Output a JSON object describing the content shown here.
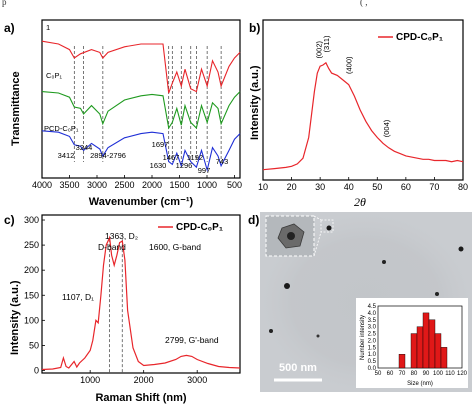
{
  "top_strip": {
    "left_text": "p",
    "right_text": "(                 ,"
  },
  "panels": {
    "a": {
      "letter": "a)",
      "ylabel": "Transmittance",
      "xlabel": "Wavenumber (cm⁻¹)",
      "xticks": [
        "4000",
        "3500",
        "3000",
        "2500",
        "2000",
        "1500",
        "1000",
        "500"
      ],
      "trace_labels": [
        "1",
        "C₀P₁",
        "PCD-C₀P₁"
      ],
      "peak_labels": [
        "3412",
        "3244",
        "2894-2796",
        "1697",
        "1630",
        "1467",
        "1296",
        "1192",
        "997",
        "743"
      ]
    },
    "b": {
      "letter": "b)",
      "ylabel": "Intensity (a.u.)",
      "xlabel": "2θ",
      "legend": "CPD-C₀P₁",
      "xticks": [
        "10",
        "20",
        "30",
        "40",
        "50",
        "60",
        "70",
        "80"
      ],
      "hkl": [
        "(002)",
        "(311)",
        "(400)",
        "(004)"
      ]
    },
    "c": {
      "letter": "c)",
      "ylabel": "Intensity (a.u.)",
      "xlabel": "Raman Shift (nm)",
      "legend": "CPD-C₀P₁",
      "xticks": [
        "1000",
        "2000",
        "3000"
      ],
      "yticks": [
        "0",
        "50",
        "100",
        "150",
        "200",
        "250",
        "300"
      ],
      "annotations": [
        "1363, D₂",
        "D-band",
        "1600, G-band",
        "1107, D₁",
        "2799, G'-band"
      ]
    },
    "d": {
      "letter": "d)",
      "scale_bar": "500 nm",
      "hist_ylabel": "Number intensity",
      "hist_xlabel": "Size (nm)",
      "hist_xticks": [
        "50",
        "60",
        "70",
        "80",
        "90",
        "100",
        "110",
        "120"
      ],
      "hist_yticks": [
        "0.0",
        "0.5",
        "1.0",
        "1.5",
        "2.0",
        "2.5",
        "3.0",
        "3.5",
        "4.0",
        "4.5"
      ]
    }
  },
  "colors": {
    "red": "#e8262b",
    "green": "#1f9a1f",
    "blue": "#1f2fd6",
    "tem_bg": "#c9ccd0"
  },
  "chart_data": [
    {
      "type": "line",
      "panel": "a",
      "xlabel": "Wavenumber (cm⁻¹)",
      "ylabel": "Transmittance",
      "xlim": [
        4000,
        400
      ],
      "series": [
        {
          "name": "1",
          "color": "#e8262b",
          "x": [
            4000,
            3700,
            3500,
            3412,
            3300,
            3100,
            2950,
            2894,
            2800,
            2500,
            2200,
            2000,
            1800,
            1697,
            1630,
            1550,
            1467,
            1400,
            1296,
            1192,
            1100,
            997,
            900,
            800,
            743,
            600,
            500,
            400
          ],
          "y": [
            0.92,
            0.9,
            0.86,
            0.8,
            0.83,
            0.86,
            0.84,
            0.8,
            0.84,
            0.88,
            0.9,
            0.9,
            0.9,
            0.55,
            0.62,
            0.7,
            0.6,
            0.72,
            0.58,
            0.56,
            0.72,
            0.6,
            0.78,
            0.7,
            0.6,
            0.74,
            0.8,
            0.84
          ]
        },
        {
          "name": "C₀P₁",
          "color": "#1f9a1f",
          "x": [
            4000,
            3700,
            3500,
            3412,
            3300,
            3244,
            3100,
            2950,
            2894,
            2800,
            2500,
            2200,
            2000,
            1800,
            1697,
            1630,
            1550,
            1467,
            1400,
            1296,
            1192,
            1100,
            997,
            900,
            800,
            743,
            600,
            500,
            400
          ],
          "y": [
            0.56,
            0.55,
            0.52,
            0.45,
            0.44,
            0.4,
            0.46,
            0.4,
            0.33,
            0.42,
            0.5,
            0.53,
            0.54,
            0.53,
            0.3,
            0.34,
            0.44,
            0.32,
            0.46,
            0.34,
            0.3,
            0.46,
            0.34,
            0.48,
            0.44,
            0.33,
            0.46,
            0.52,
            0.56
          ]
        },
        {
          "name": "PCD-C₀P₁",
          "color": "#1f2fd6",
          "x": [
            4000,
            3700,
            3500,
            3412,
            3300,
            3244,
            3100,
            2950,
            2894,
            2800,
            2500,
            2200,
            2000,
            1800,
            1697,
            1630,
            1550,
            1467,
            1400,
            1296,
            1192,
            1100,
            997,
            900,
            800,
            743,
            600,
            500,
            400
          ],
          "y": [
            0.28,
            0.27,
            0.24,
            0.18,
            0.17,
            0.14,
            0.19,
            0.15,
            0.1,
            0.16,
            0.23,
            0.26,
            0.27,
            0.26,
            0.06,
            0.04,
            0.12,
            0.03,
            0.14,
            0.06,
            0.02,
            0.14,
            0.0,
            0.16,
            0.1,
            0.03,
            0.14,
            0.22,
            0.26
          ]
        }
      ],
      "peaks": [
        3412,
        3244,
        2894,
        1697,
        1630,
        1467,
        1296,
        1192,
        997,
        743
      ]
    },
    {
      "type": "line",
      "panel": "b",
      "xlabel": "2θ",
      "ylabel": "Intensity (a.u.)",
      "xlim": [
        10,
        80
      ],
      "series": [
        {
          "name": "CPD-C₀P₁",
          "color": "#e8262b",
          "x": [
            10,
            14,
            18,
            20,
            22,
            24,
            26,
            28,
            29,
            30,
            31,
            32,
            33,
            34,
            36,
            38,
            40,
            42,
            44,
            46,
            48,
            50,
            52,
            54,
            56,
            58,
            60,
            62,
            64,
            66,
            68,
            70,
            72,
            74,
            76,
            78,
            80
          ],
          "y": [
            0.02,
            0.03,
            0.04,
            0.05,
            0.07,
            0.12,
            0.3,
            0.7,
            0.86,
            0.92,
            0.93,
            0.95,
            0.9,
            0.86,
            0.84,
            0.8,
            0.76,
            0.66,
            0.54,
            0.44,
            0.36,
            0.3,
            0.25,
            0.21,
            0.18,
            0.16,
            0.14,
            0.13,
            0.12,
            0.11,
            0.11,
            0.1,
            0.1,
            0.1,
            0.09,
            0.1,
            0.09
          ]
        }
      ]
    },
    {
      "type": "line",
      "panel": "c",
      "xlabel": "Raman Shift (nm)",
      "ylabel": "Intensity (a.u.)",
      "xlim": [
        100,
        3800
      ],
      "ylim": [
        -5,
        310
      ],
      "series": [
        {
          "name": "CPD-C₀P₁",
          "color": "#e8262b",
          "x": [
            100,
            300,
            450,
            500,
            550,
            600,
            700,
            750,
            800,
            900,
            1000,
            1050,
            1107,
            1150,
            1200,
            1250,
            1300,
            1363,
            1400,
            1450,
            1500,
            1550,
            1600,
            1650,
            1700,
            1800,
            1900,
            2000,
            2200,
            2400,
            2600,
            2700,
            2799,
            2900,
            3000,
            3200,
            3400,
            3600,
            3800
          ],
          "y": [
            2,
            3,
            6,
            25,
            8,
            5,
            18,
            7,
            15,
            25,
            40,
            60,
            100,
            95,
            150,
            210,
            250,
            265,
            230,
            210,
            230,
            255,
            258,
            220,
            120,
            45,
            18,
            10,
            12,
            15,
            22,
            28,
            30,
            28,
            22,
            14,
            8,
            6,
            5
          ]
        }
      ]
    },
    {
      "type": "bar",
      "panel": "d",
      "xlabel": "Size (nm)",
      "ylabel": "Number intensity",
      "categories": [
        "70",
        "80",
        "85",
        "90",
        "95",
        "100",
        "105"
      ],
      "values": [
        1.0,
        2.5,
        3.0,
        4.0,
        3.5,
        2.5,
        1.5
      ],
      "xlim": [
        50,
        120
      ],
      "ylim": [
        0,
        4.5
      ]
    }
  ]
}
